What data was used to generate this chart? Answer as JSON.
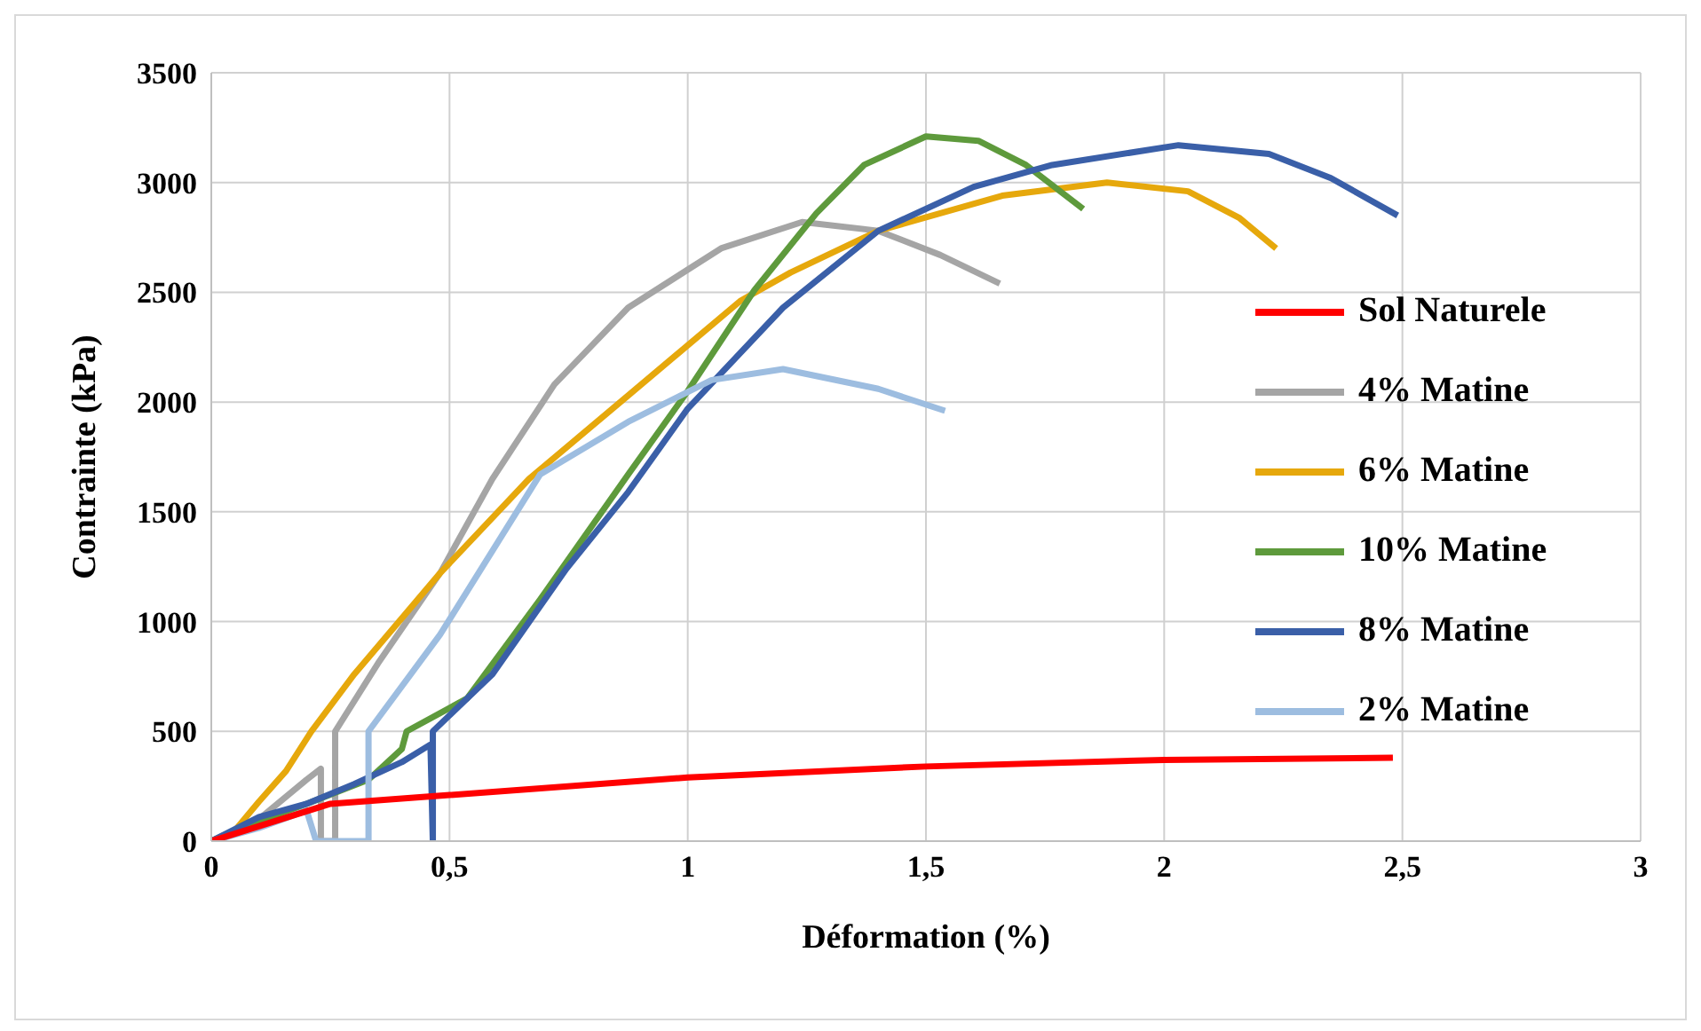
{
  "chart_data": {
    "type": "line",
    "xlabel": "Déformation (%)",
    "ylabel": "Contrainte (kPa)",
    "xlim": [
      0,
      3
    ],
    "xticks": [
      0,
      {
        "value": 0.5,
        "label": "0,5"
      },
      1,
      {
        "value": 1.5,
        "label": "1,5"
      },
      2,
      {
        "value": 2.5,
        "label": "2,5"
      },
      3
    ],
    "ylim": [
      0,
      3500
    ],
    "yticks": [
      0,
      500,
      1000,
      1500,
      2000,
      2500,
      3000,
      3500
    ],
    "grid": true,
    "legend": "right",
    "marker": "none",
    "line_style": "solid",
    "series": [
      {
        "name": "Sol Naturele",
        "color": "#ff0000",
        "x": [
          0,
          0.25,
          0.5,
          1.0,
          1.5,
          2.0,
          2.48
        ],
        "values": [
          0,
          170,
          210,
          290,
          340,
          370,
          380
        ]
      },
      {
        "name": "4% Matine",
        "color": "#a5a5a5",
        "x": [
          0,
          0.1,
          0.2,
          0.23,
          0.23,
          0.26,
          0.26,
          0.35,
          0.48,
          0.59,
          0.72,
          0.875,
          1.07,
          1.24,
          1.4,
          1.53,
          1.655
        ],
        "values": [
          0,
          100,
          280,
          330,
          0,
          0,
          500,
          810,
          1220,
          1650,
          2080,
          2430,
          2700,
          2820,
          2780,
          2670,
          2540
        ]
      },
      {
        "name": "6% Matine",
        "color": "#e6a80c",
        "x": [
          0,
          0.05,
          0.1,
          0.157,
          0.21,
          0.3,
          0.48,
          0.667,
          0.875,
          1.11,
          1.216,
          1.4,
          1.66,
          1.88,
          2.05,
          2.157,
          2.235
        ],
        "values": [
          0,
          50,
          180,
          320,
          500,
          760,
          1220,
          1650,
          2030,
          2460,
          2590,
          2780,
          2940,
          3000,
          2960,
          2840,
          2700
        ]
      },
      {
        "name": "10% Matine",
        "color": "#5e9a3c",
        "x": [
          0,
          0.2,
          0.33,
          0.4,
          0.41,
          0.537,
          0.69,
          0.875,
          1.0,
          1.14,
          1.27,
          1.37,
          1.5,
          1.61,
          1.71,
          1.83
        ],
        "values": [
          0,
          170,
          280,
          420,
          500,
          650,
          1100,
          1670,
          2050,
          2510,
          2860,
          3080,
          3210,
          3190,
          3080,
          2880
        ]
      },
      {
        "name": "8% Matine",
        "color": "#3a5fa8",
        "x": [
          0,
          0.1,
          0.2,
          0.3,
          0.4,
          0.46,
          0.465,
          0.465,
          0.59,
          0.745,
          0.875,
          1.0,
          1.2,
          1.4,
          1.6,
          1.765,
          2.03,
          2.22,
          2.35,
          2.49
        ],
        "values": [
          0,
          110,
          170,
          260,
          360,
          440,
          0,
          500,
          760,
          1240,
          1590,
          1970,
          2430,
          2780,
          2980,
          3080,
          3170,
          3130,
          3020,
          2850
        ]
      },
      {
        "name": "2% Matine",
        "color": "#9dbde0",
        "x": [
          0,
          0.1,
          0.2,
          0.22,
          0.33,
          0.33,
          0.48,
          0.69,
          0.875,
          1.05,
          1.2,
          1.4,
          1.54
        ],
        "values": [
          0,
          60,
          140,
          0,
          0,
          500,
          940,
          1670,
          1910,
          2100,
          2150,
          2060,
          1960
        ]
      }
    ]
  }
}
